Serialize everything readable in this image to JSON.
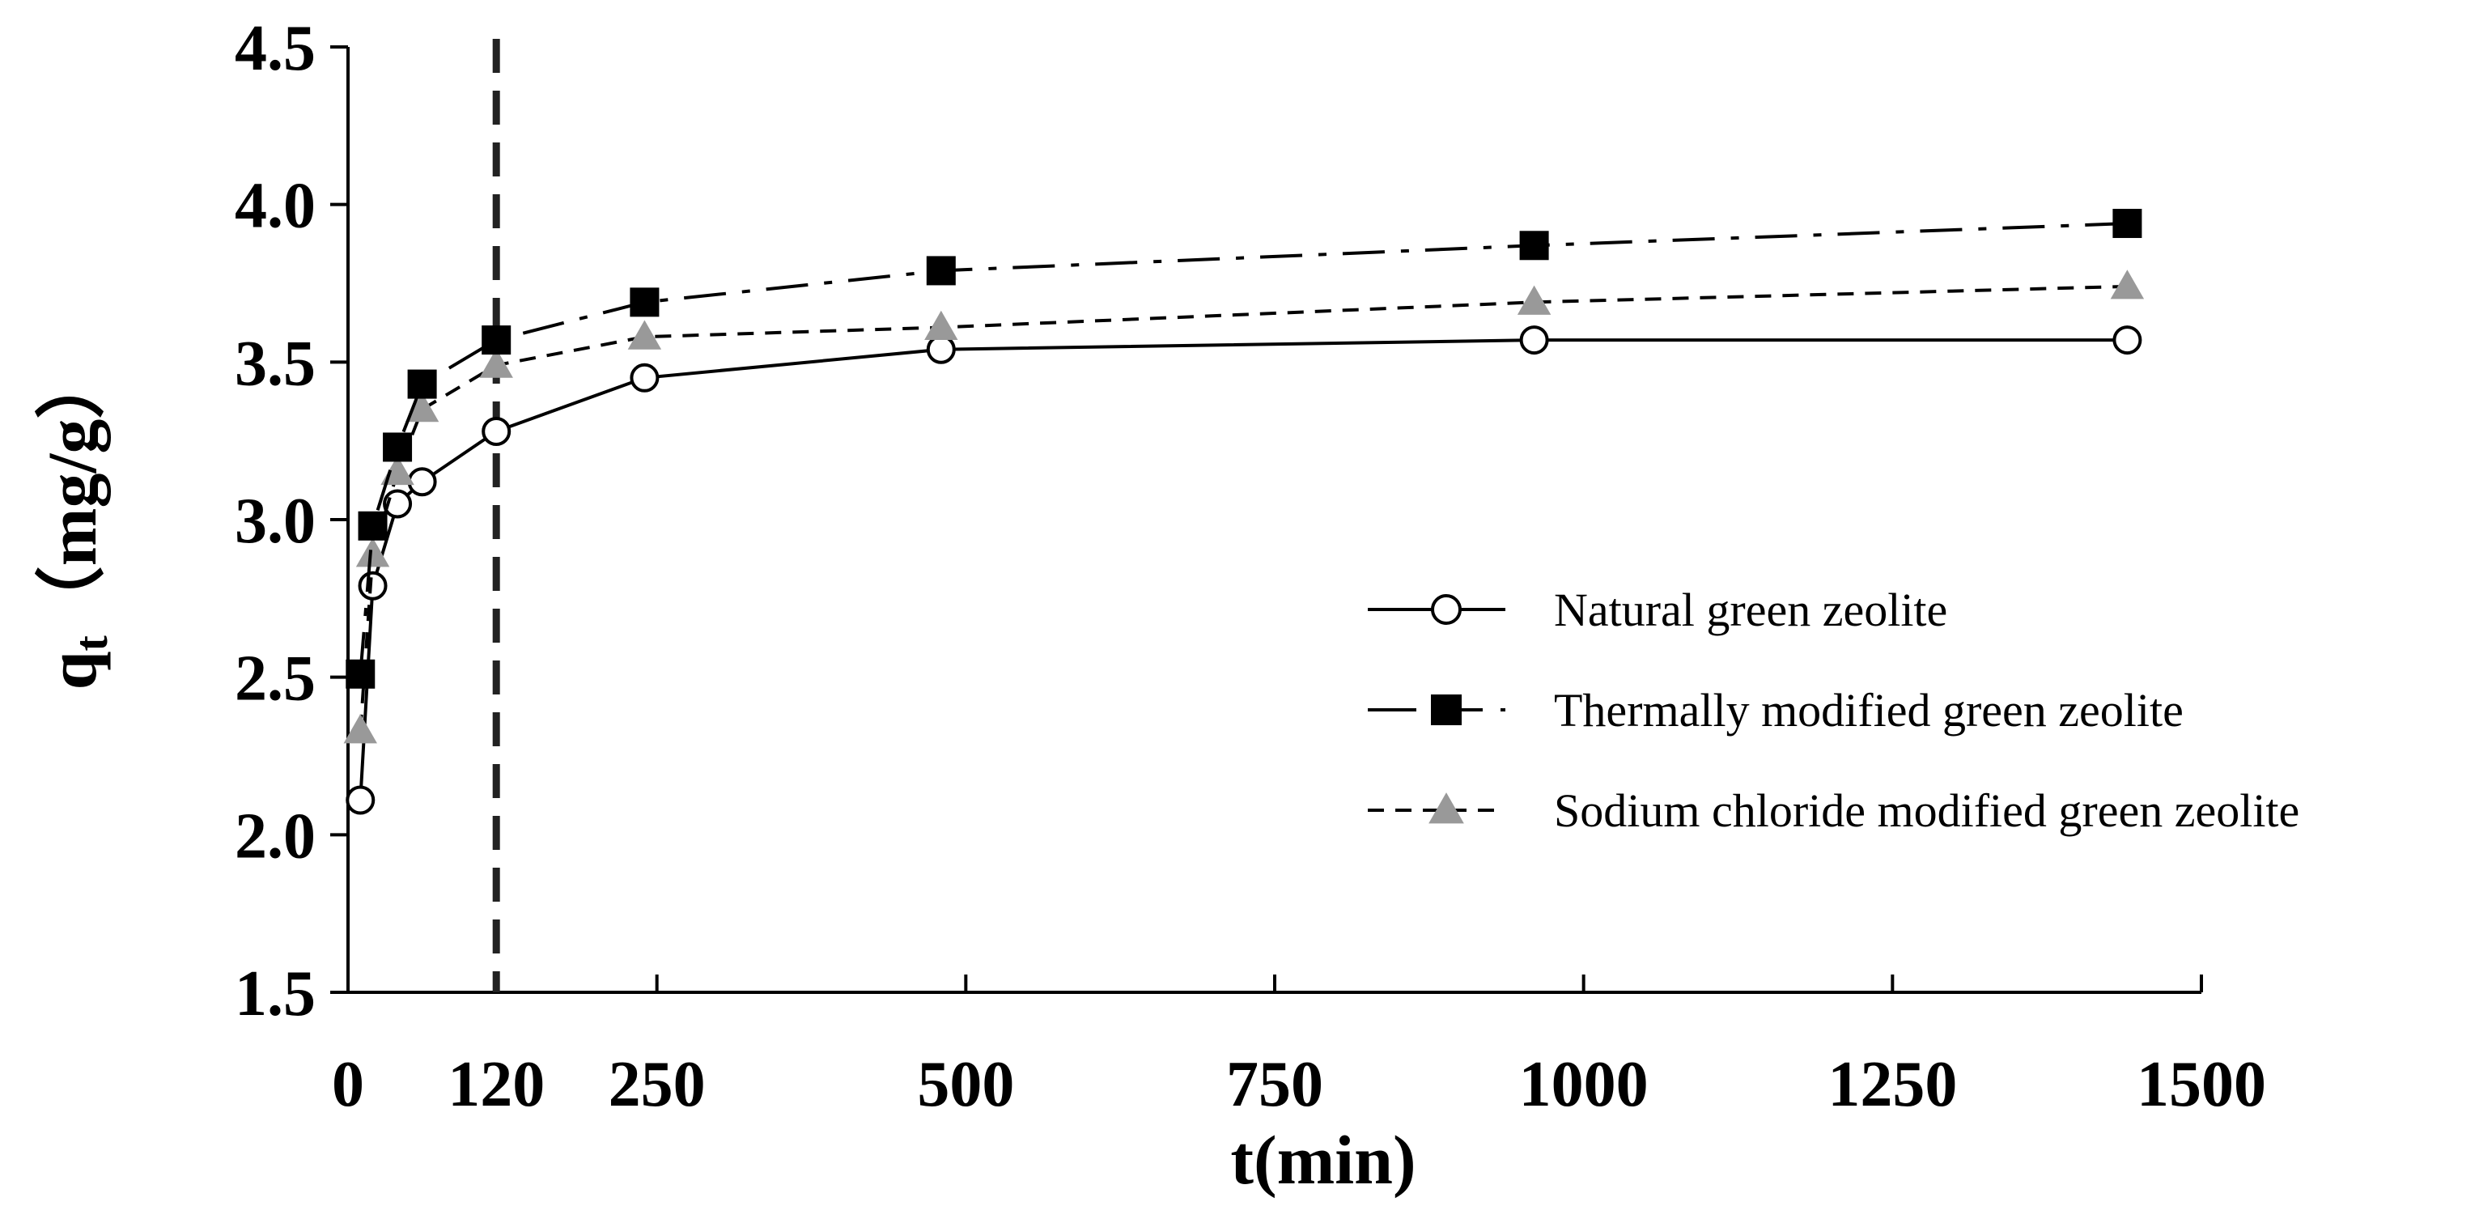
{
  "chart_data": {
    "type": "line",
    "title": "",
    "xlabel": "t(min)",
    "ylabel_main": "q",
    "ylabel_sub": "t",
    "ylabel_unit": "（mg/g）",
    "xlim": [
      0,
      1500
    ],
    "ylim": [
      1.5,
      4.5
    ],
    "xticks": [
      0,
      120,
      250,
      500,
      750,
      1000,
      1250,
      1500
    ],
    "yticks": [
      1.5,
      2.0,
      2.5,
      3.0,
      3.5,
      4.0,
      4.5
    ],
    "ytick_labels": [
      "1.5",
      "2.0",
      "2.5",
      "3.0",
      "3.5",
      "4.0",
      "4.5"
    ],
    "grid": false,
    "legend_position": "right",
    "reference_line": {
      "x": 120,
      "style": "dashed"
    },
    "series": [
      {
        "name": "Natural green zeolite",
        "marker": "circle-open",
        "line_style": "solid",
        "color": "#000000",
        "x": [
          10,
          20,
          40,
          60,
          120,
          240,
          480,
          960,
          1440
        ],
        "y": [
          2.11,
          2.79,
          3.05,
          3.12,
          3.28,
          3.45,
          3.54,
          3.57,
          3.57
        ]
      },
      {
        "name": "Thermally modified green zeolite",
        "marker": "square-filled",
        "line_style": "dash-dot",
        "color": "#000000",
        "x": [
          10,
          20,
          40,
          60,
          120,
          240,
          480,
          960,
          1440
        ],
        "y": [
          2.51,
          2.98,
          3.23,
          3.43,
          3.57,
          3.69,
          3.79,
          3.87,
          3.94
        ]
      },
      {
        "name": "Sodium chloride modified green zeolite",
        "marker": "triangle-filled",
        "line_style": "short-dash",
        "color": "#999999",
        "x": [
          10,
          20,
          40,
          60,
          120,
          240,
          480,
          960,
          1440
        ],
        "y": [
          2.33,
          2.89,
          3.15,
          3.35,
          3.49,
          3.58,
          3.61,
          3.69,
          3.74
        ]
      }
    ]
  }
}
